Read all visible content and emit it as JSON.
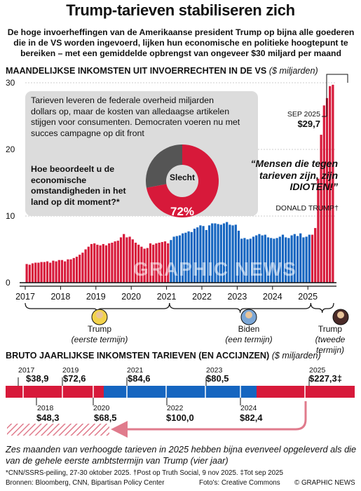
{
  "header": {
    "title": "Trump-tarieven stabiliseren zich",
    "subtitle": "De hoge invoerheffingen van de Amerikaanse president Trump op bijna alle goederen die in de VS worden ingevoerd, lijken hun economische en politieke hoogtepunt te bereiken – met een gemiddelde opbrengst van ongeveer $30 miljard per maand"
  },
  "monthly": {
    "title": "MAANDELIJKSE INKOMSTEN UIT INVOERRECHTEN IN DE VS",
    "unit": "($ miljarden)"
  },
  "survey": {
    "text": "Tarieven leveren de federale overheid miljarden dollars op, maar de kosten van alledaagse artikelen stijgen voor consumenten. Democraten voeren nu met succes campagne op dit front",
    "question": "Hoe beoordeelt u de economische omstandigheden in het land op dit moment?*",
    "answer_label": "Slecht",
    "answer_value": "72%",
    "answer_fraction": 0.72
  },
  "quote": {
    "text": "“Mensen die tegen tarieven zijn, zijn IDIOTEN!”",
    "author": "DONALD TRUMP†"
  },
  "callout": {
    "label": "SEP 2025",
    "value": "$29,7"
  },
  "terms": [
    {
      "name": "Trump",
      "sub": "(eerste termijn)"
    },
    {
      "name": "Biden",
      "sub": "(een termijn)"
    },
    {
      "name": "Trump",
      "sub": "(tweede termijn)"
    }
  ],
  "annual": {
    "title": "BRUTO JAARLIJKSE INKOMSTEN TARIEVEN (EN ACCIJNZEN)",
    "unit": "($ miljarden)",
    "years": [
      {
        "year": "2017",
        "value": "$38,9"
      },
      {
        "year": "2018",
        "value": "$48,3"
      },
      {
        "year": "2019",
        "value": "$72,6"
      },
      {
        "year": "2020",
        "value": "$68,5"
      },
      {
        "year": "2021",
        "value": "$84,6"
      },
      {
        "year": "2022",
        "value": "$100,0"
      },
      {
        "year": "2023",
        "value": "$80,5"
      },
      {
        "year": "2024",
        "value": "$82,4"
      },
      {
        "year": "2025",
        "value": "$227,3‡"
      }
    ]
  },
  "footer": {
    "note": "Zes maanden van verhoogde tarieven in 2025 hebben bijna evenveel opgeleverd als die van de gehele eerste ambtstermijn van Trump (vier jaar)",
    "footnote": "*CNN/SSRS-peiling, 27-30 oktober 2025. †Post op Truth Social, 9 nov 2025. ‡Tot sep 2025",
    "sources": "Bronnen: Bloomberg, CNN, Bipartisan Policy Center",
    "photos": "Foto's: Creative Commons",
    "copyright": "© GRAPHIC NEWS"
  },
  "watermark": "GRAPHIC NEWS",
  "colors": {
    "republican": "#d7193a",
    "democrat": "#1565c0",
    "highlight": "#e07b8c",
    "gray": "#555555"
  },
  "chart_data": {
    "type": "bar",
    "title": "MAANDELIJKSE INKOMSTEN UIT INVOERRECHTEN IN DE VS",
    "ylabel": "($ miljarden)",
    "ylim": [
      0,
      30
    ],
    "yticks": [
      0,
      10,
      20,
      30
    ],
    "xticks": [
      "2017",
      "2018",
      "2019",
      "2020",
      "2021",
      "2022",
      "2023",
      "2024",
      "2025"
    ],
    "series": [
      {
        "name": "Trump (eerste termijn)",
        "color": "#d7193a",
        "x": [
          "2017-01",
          "2017-02",
          "2017-03",
          "2017-04",
          "2017-05",
          "2017-06",
          "2017-07",
          "2017-08",
          "2017-09",
          "2017-10",
          "2017-11",
          "2017-12",
          "2018-01",
          "2018-02",
          "2018-03",
          "2018-04",
          "2018-05",
          "2018-06",
          "2018-07",
          "2018-08",
          "2018-09",
          "2018-10",
          "2018-11",
          "2018-12",
          "2019-01",
          "2019-02",
          "2019-03",
          "2019-04",
          "2019-05",
          "2019-06",
          "2019-07",
          "2019-08",
          "2019-09",
          "2019-10",
          "2019-11",
          "2019-12",
          "2020-01",
          "2020-02",
          "2020-03",
          "2020-04",
          "2020-05",
          "2020-06",
          "2020-07",
          "2020-08",
          "2020-09",
          "2020-10",
          "2020-11",
          "2020-12",
          "2021-01"
        ],
        "values": [
          2.8,
          2.7,
          2.9,
          3.0,
          3.0,
          3.1,
          3.1,
          3.2,
          3.0,
          3.3,
          3.2,
          3.4,
          3.4,
          3.2,
          3.5,
          3.5,
          3.7,
          3.9,
          4.2,
          4.5,
          5.0,
          5.4,
          5.8,
          5.9,
          5.7,
          5.6,
          5.8,
          5.6,
          5.9,
          6.0,
          6.2,
          6.3,
          6.8,
          7.3,
          6.8,
          6.9,
          6.5,
          6.0,
          5.7,
          5.4,
          5.1,
          5.2,
          5.9,
          5.7,
          5.9,
          6.0,
          6.1,
          6.2,
          5.9
        ]
      },
      {
        "name": "Biden (een termijn)",
        "color": "#1565c0",
        "x": [
          "2021-02",
          "2021-03",
          "2021-04",
          "2021-05",
          "2021-06",
          "2021-07",
          "2021-08",
          "2021-09",
          "2021-10",
          "2021-11",
          "2021-12",
          "2022-01",
          "2022-02",
          "2022-03",
          "2022-04",
          "2022-05",
          "2022-06",
          "2022-07",
          "2022-08",
          "2022-09",
          "2022-10",
          "2022-11",
          "2022-12",
          "2023-01",
          "2023-02",
          "2023-03",
          "2023-04",
          "2023-05",
          "2023-06",
          "2023-07",
          "2023-08",
          "2023-09",
          "2023-10",
          "2023-11",
          "2023-12",
          "2024-01",
          "2024-02",
          "2024-03",
          "2024-04",
          "2024-05",
          "2024-06",
          "2024-07",
          "2024-08",
          "2024-09",
          "2024-10",
          "2024-11",
          "2024-12",
          "2025-01"
        ],
        "values": [
          6.4,
          6.9,
          7.0,
          7.1,
          7.4,
          7.5,
          7.7,
          7.6,
          8.1,
          8.3,
          8.6,
          8.5,
          7.9,
          8.6,
          8.9,
          8.9,
          8.8,
          8.7,
          8.9,
          9.1,
          8.7,
          8.6,
          8.7,
          7.8,
          6.6,
          6.7,
          6.5,
          6.6,
          6.9,
          7.1,
          7.3,
          7.1,
          7.2,
          6.8,
          6.7,
          6.6,
          6.7,
          6.9,
          7.2,
          6.8,
          6.7,
          7.1,
          7.3,
          7.0,
          7.4,
          6.8,
          6.9,
          7.2
        ]
      },
      {
        "name": "Trump (tweede termijn)",
        "color": "#d7193a",
        "x": [
          "2025-02",
          "2025-03",
          "2025-04",
          "2025-05",
          "2025-06",
          "2025-07",
          "2025-08",
          "2025-09"
        ],
        "values": [
          7.2,
          8.2,
          15.6,
          22.2,
          26.6,
          27.7,
          29.5,
          29.7
        ]
      }
    ],
    "highlight": {
      "label": "SEP 2025",
      "value": 29.7
    },
    "annual": {
      "type": "bar",
      "categories": [
        "2017",
        "2018",
        "2019",
        "2020",
        "2021",
        "2022",
        "2023",
        "2024",
        "2025"
      ],
      "values": [
        38.9,
        48.3,
        72.6,
        68.5,
        84.6,
        100.0,
        80.5,
        82.4,
        227.3
      ]
    }
  }
}
